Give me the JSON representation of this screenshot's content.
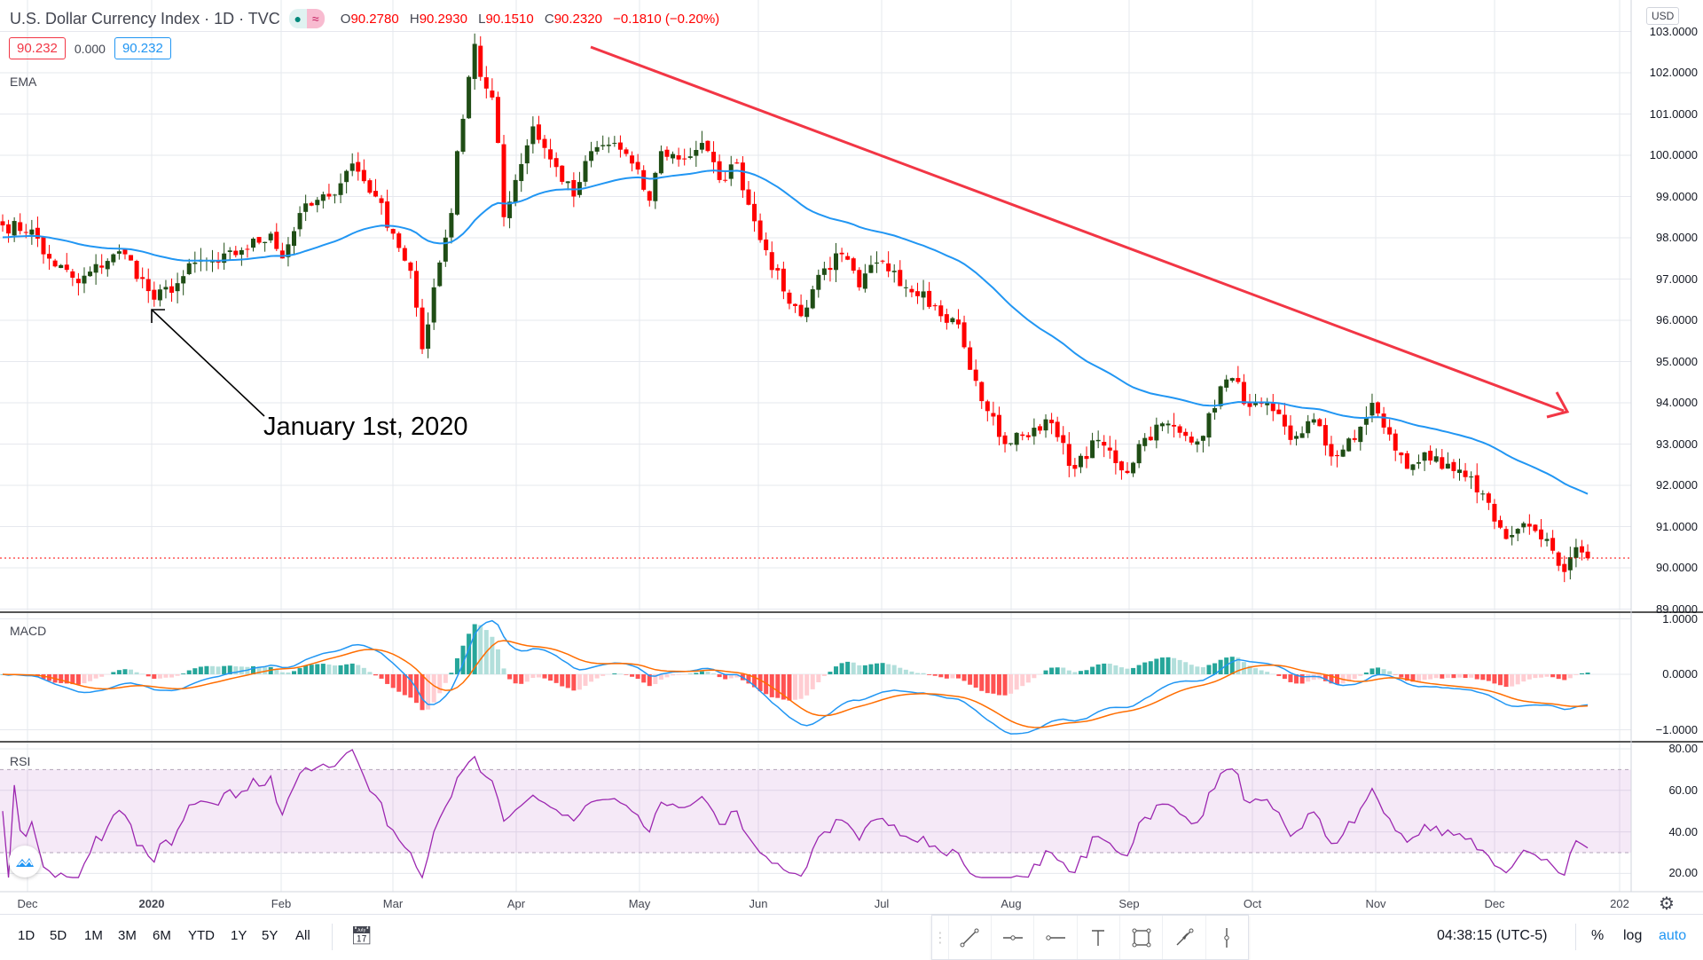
{
  "header": {
    "title": "U.S. Dollar Currency Index · 1D · TVC",
    "status_icons": [
      "market-open-dot",
      "approx-icon"
    ],
    "ohlc": {
      "o_label": "O",
      "o": "90.2780",
      "h_label": "H",
      "h": "90.2930",
      "l_label": "L",
      "l": "90.1510",
      "c_label": "C",
      "c": "90.2320",
      "change": "−0.1810 (−0.20%)"
    },
    "bid": "90.232",
    "spread": "0.000",
    "ask": "90.232"
  },
  "indicators": {
    "ema": "EMA",
    "macd": "MACD",
    "rsi": "RSI"
  },
  "price_axis": {
    "currency": "USD",
    "main": [
      "103.0000",
      "102.0000",
      "101.0000",
      "100.0000",
      "99.0000",
      "98.0000",
      "97.0000",
      "96.0000",
      "95.0000",
      "94.0000",
      "93.0000",
      "92.0000",
      "91.0000",
      "90.0000",
      "89.0000"
    ],
    "macd": [
      "1.0000",
      "0.0000",
      "−1.0000"
    ],
    "rsi": [
      "80.00",
      "60.00",
      "40.00",
      "20.00"
    ]
  },
  "time_axis": [
    "Dec",
    "2020",
    "Feb",
    "Mar",
    "Apr",
    "May",
    "Jun",
    "Jul",
    "Aug",
    "Sep",
    "Oct",
    "Nov",
    "Dec",
    "202"
  ],
  "annotation": "January 1st, 2020",
  "bottom_toolbar": {
    "ranges": [
      "1D",
      "5D",
      "1M",
      "3M",
      "6M",
      "YTD",
      "1Y",
      "5Y",
      "All"
    ],
    "clock": "04:38:15 (UTC-5)",
    "percent": "%",
    "log": "log",
    "auto": "auto"
  },
  "colors": {
    "up": "#1f4d15",
    "down": "#ff0000",
    "ema": "#2196f3",
    "trend": "#f23645",
    "macd": "#2196f3",
    "signal": "#ff6d00",
    "rsi": "#9c27b0",
    "accent": "#2196f3"
  },
  "chart_data": {
    "type": "candlestick",
    "symbol": "DXY",
    "last_price": 90.232,
    "ylim": [
      89,
      103
    ],
    "close_keypoints_by_bar_index": [
      [
        0,
        98.3
      ],
      [
        5,
        98.2
      ],
      [
        7,
        97.6
      ],
      [
        13,
        96.9
      ],
      [
        19,
        97.6
      ],
      [
        21,
        97.6
      ],
      [
        26,
        96.5
      ],
      [
        30,
        96.9
      ],
      [
        33,
        97.4
      ],
      [
        37,
        97.4
      ],
      [
        41,
        97.7
      ],
      [
        46,
        98.1
      ],
      [
        48,
        97.5
      ],
      [
        51,
        98.6
      ],
      [
        56,
        99.0
      ],
      [
        60,
        99.8
      ],
      [
        64,
        99.0
      ],
      [
        67,
        98.1
      ],
      [
        70,
        97.2
      ],
      [
        72,
        95.3
      ],
      [
        73,
        95.9
      ],
      [
        75,
        97.4
      ],
      [
        77,
        98.6
      ],
      [
        78,
        100.1
      ],
      [
        80,
        101.9
      ],
      [
        81,
        102.7
      ],
      [
        82,
        101.9
      ],
      [
        84,
        101.4
      ],
      [
        85,
        100.3
      ],
      [
        86,
        98.5
      ],
      [
        88,
        99.4
      ],
      [
        91,
        100.7
      ],
      [
        94,
        99.9
      ],
      [
        98,
        99.0
      ],
      [
        101,
        100.1
      ],
      [
        105,
        100.3
      ],
      [
        108,
        99.8
      ],
      [
        111,
        98.9
      ],
      [
        113,
        100.1
      ],
      [
        117,
        99.9
      ],
      [
        120,
        100.3
      ],
      [
        123,
        99.4
      ],
      [
        126,
        99.8
      ],
      [
        128,
        98.8
      ],
      [
        131,
        97.7
      ],
      [
        134,
        96.7
      ],
      [
        137,
        96.1
      ],
      [
        140,
        97.1
      ],
      [
        144,
        97.6
      ],
      [
        147,
        96.8
      ],
      [
        150,
        97.4
      ],
      [
        153,
        97.2
      ],
      [
        155,
        96.8
      ],
      [
        158,
        96.7
      ],
      [
        161,
        96.1
      ],
      [
        164,
        95.9
      ],
      [
        166,
        94.8
      ],
      [
        169,
        93.8
      ],
      [
        172,
        93.0
      ],
      [
        175,
        93.2
      ],
      [
        179,
        93.6
      ],
      [
        184,
        92.4
      ],
      [
        188,
        93.1
      ],
      [
        193,
        92.3
      ],
      [
        195,
        93.0
      ],
      [
        199,
        93.5
      ],
      [
        203,
        93.2
      ],
      [
        206,
        93.2
      ],
      [
        209,
        94.4
      ],
      [
        211,
        94.6
      ],
      [
        214,
        93.9
      ],
      [
        218,
        93.8
      ],
      [
        221,
        93.1
      ],
      [
        225,
        93.6
      ],
      [
        228,
        92.7
      ],
      [
        232,
        93.1
      ],
      [
        235,
        94.0
      ],
      [
        237,
        93.4
      ],
      [
        241,
        92.4
      ],
      [
        244,
        92.8
      ],
      [
        247,
        92.4
      ],
      [
        251,
        92.2
      ],
      [
        254,
        91.8
      ],
      [
        258,
        90.7
      ],
      [
        262,
        91.0
      ],
      [
        265,
        90.7
      ],
      [
        268,
        89.9
      ],
      [
        270,
        90.5
      ],
      [
        272,
        90.23
      ]
    ],
    "macd_range": [
      -1,
      1
    ],
    "rsi_range": [
      20,
      80
    ],
    "rsi_bands": [
      30,
      70
    ]
  }
}
